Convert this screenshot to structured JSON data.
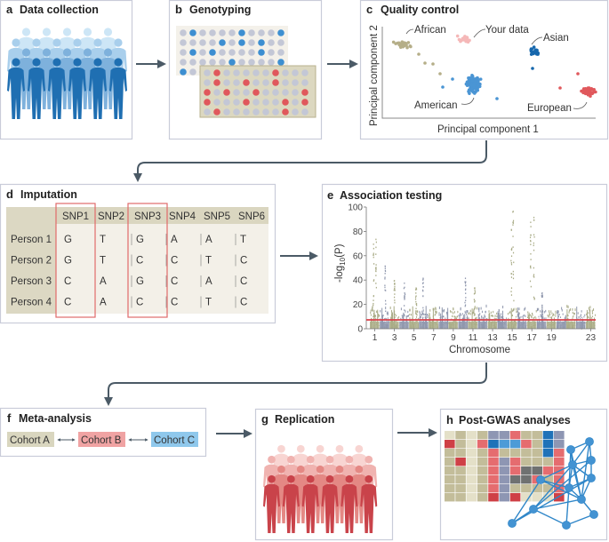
{
  "panels": {
    "a": {
      "letter": "a",
      "title": "Data collection",
      "colors": [
        "#cde6f6",
        "#a9cfec",
        "#7eb1dc",
        "#1f6fb2"
      ]
    },
    "b": {
      "letter": "b",
      "title": "Genotyping",
      "top_grid": [
        ".B....B...B",
        "....B.B.B..",
        ".B.B....B..",
        ".....B....B",
        "B.........."
      ],
      "bottom_grid": [
        ".R.....R...",
        ".R..R..R...",
        "R.R..R....R",
        "R...R...R.R",
        ".R......R.."
      ],
      "colors": {
        "dot": "#c3c7d6",
        "blue": "#3d8fd1",
        "red": "#e0585c",
        "top_bg": "#f4f1ea",
        "bottom_bg": "#dcd8c0"
      }
    },
    "c": {
      "letter": "c",
      "title": "Quality control",
      "xlabel": "Principal component 1",
      "ylabel": "Principal component 2",
      "groups": [
        {
          "label": "African",
          "color": "#b5ae88"
        },
        {
          "label": "Your data",
          "color": "#f5b8b8"
        },
        {
          "label": "Asian",
          "color": "#1667ad"
        },
        {
          "label": "American",
          "color": "#4a95d4"
        },
        {
          "label": "European",
          "color": "#e0585c"
        }
      ]
    },
    "d": {
      "letter": "d",
      "title": "Imputation",
      "columns": [
        "SNP1",
        "SNP2",
        "SNP3",
        "SNP4",
        "SNP5",
        "SNP6"
      ],
      "rows": [
        {
          "label": "Person 1",
          "values": [
            "G",
            "T",
            "G",
            "A",
            "A",
            "T"
          ]
        },
        {
          "label": "Person 2",
          "values": [
            "G",
            "T",
            "C",
            "C",
            "T",
            "C"
          ]
        },
        {
          "label": "Person 3",
          "values": [
            "C",
            "A",
            "G",
            "C",
            "A",
            "C"
          ]
        },
        {
          "label": "Person 4",
          "values": [
            "C",
            "A",
            "C",
            "C",
            "T",
            "C"
          ]
        }
      ],
      "highlighted_columns": [
        "SNP1",
        "SNP3"
      ],
      "highlight_color": "#e06a6a"
    },
    "e": {
      "letter": "e",
      "title": "Association testing",
      "ylabel_prefix": "-log",
      "ylabel_sub": "10",
      "ylabel_suffix": "(P)",
      "xlabel": "Chromosome",
      "yticks": [
        "0",
        "20",
        "40",
        "60",
        "80",
        "100"
      ],
      "xticks": [
        "1",
        "3",
        "5",
        "7",
        "9",
        "11",
        "13",
        "15",
        "17",
        "19",
        "23"
      ],
      "threshold": 7.3,
      "threshold_color": "#d9404a",
      "series_colors": [
        "#a9ab86",
        "#8f97ad"
      ]
    },
    "f": {
      "letter": "f",
      "title": "Meta-analysis",
      "cohorts": [
        {
          "label": "Cohort A",
          "color": "#d9d6bf"
        },
        {
          "label": "Cohort B",
          "color": "#f0a3a3"
        },
        {
          "label": "Cohort C",
          "color": "#8fc8ec"
        }
      ]
    },
    "g": {
      "letter": "g",
      "title": "Replication",
      "colors": [
        "#f8d5d2",
        "#f0b3b0",
        "#e48884",
        "#c9434a"
      ]
    },
    "h": {
      "letter": "h",
      "title": "Post-GWAS analyses",
      "heatmap": [
        "LOLOPPROOBP",
        "DOLRBbbROBP",
        "OOLOROOOOBR",
        "ODLORPROOOR",
        "OOLORPRGGRR",
        "OOLORPGGROR",
        "OOLORPOOOOR",
        "OOLODPDLLLD"
      ],
      "heatmap_colors": {
        "L": "#e4e0c8",
        "O": "#c3bd9a",
        "R": "#e56c6f",
        "D": "#cf4046",
        "B": "#1f72b8",
        "b": "#4d9bd7",
        "P": "#8e96b3",
        "G": "#6f7171"
      },
      "network_color": "#2f86c8"
    }
  }
}
